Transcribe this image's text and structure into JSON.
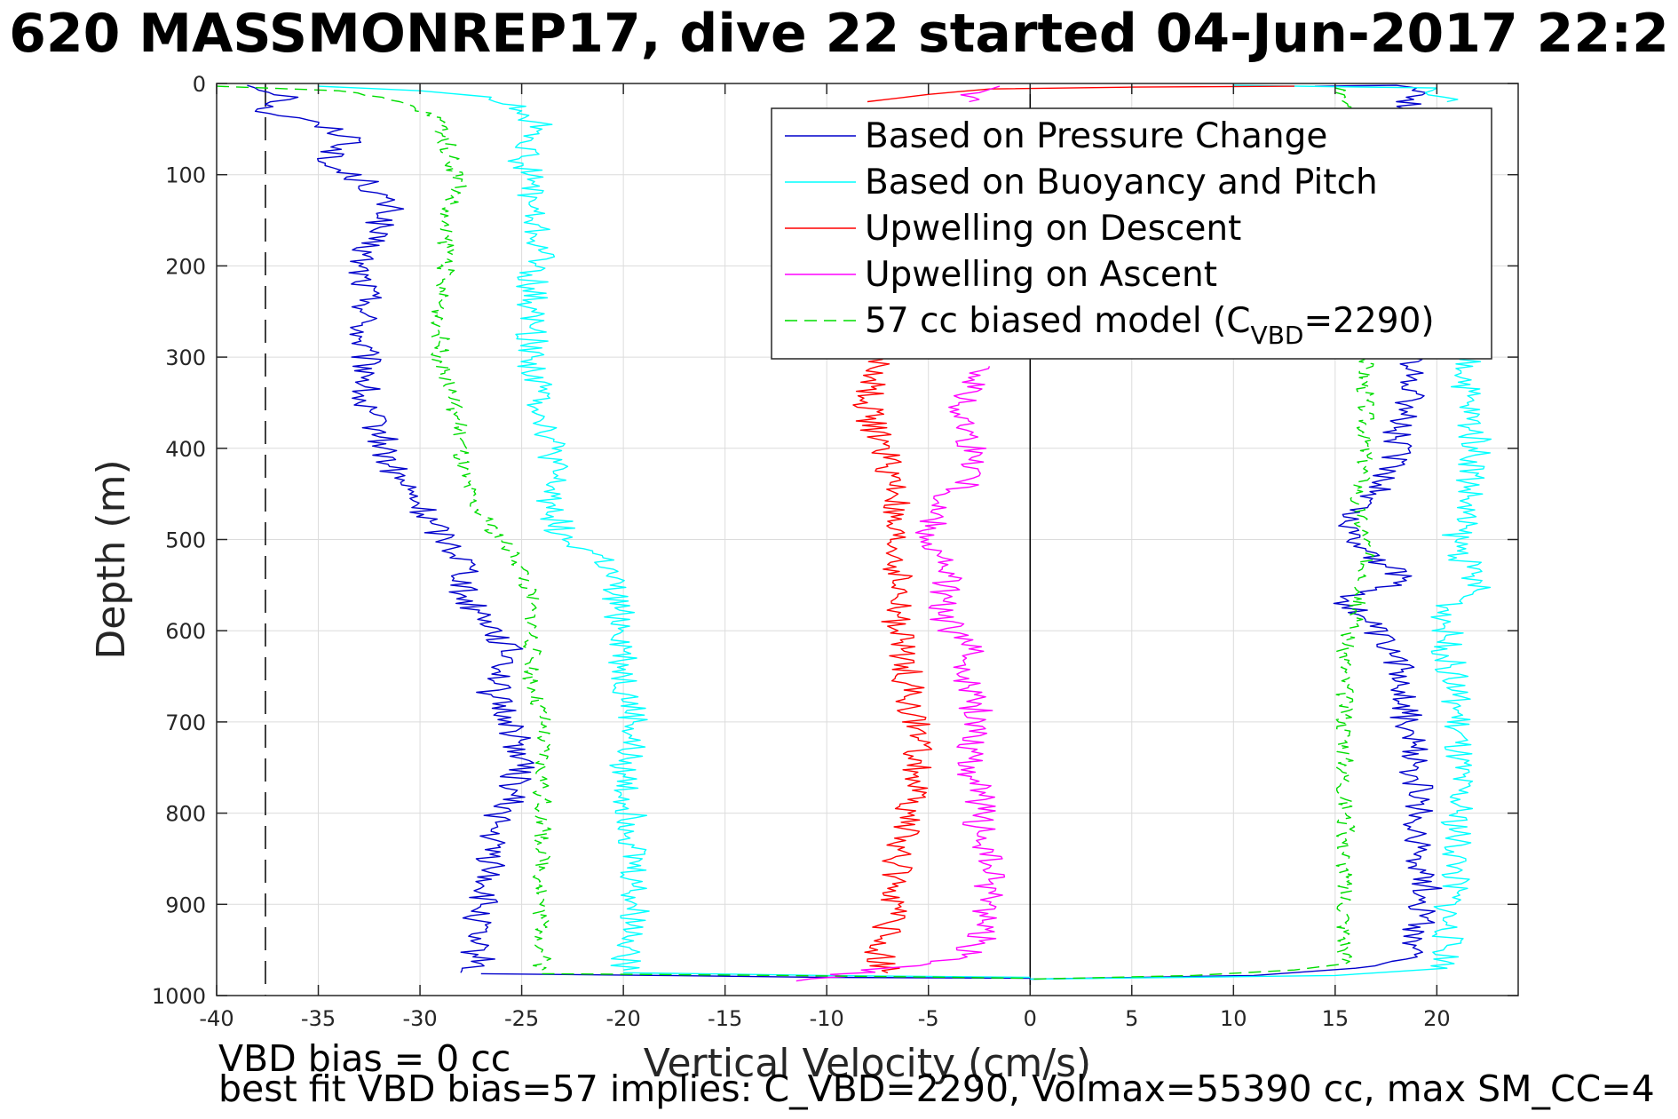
{
  "title": "620 MASSMONREP17, dive 22 started 04-Jun-2017 22:2",
  "notes": {
    "line1": "VBD bias = 0 cc",
    "line2": "best fit VBD bias=57 implies: C_VBD=2290, Volmax=55390 cc, max SM_CC=4"
  },
  "chart_data": {
    "type": "line",
    "xlabel": "Vertical Velocity (cm/s)",
    "ylabel": "Depth (m)",
    "xlim": [
      -40,
      24
    ],
    "ylim": [
      0,
      1000
    ],
    "y_reversed": true,
    "grid": true,
    "legend_position": "top-right",
    "x_ticks": [
      -40,
      -35,
      -30,
      -25,
      -20,
      -15,
      -10,
      -5,
      0,
      5,
      10,
      15,
      20
    ],
    "y_ticks": [
      0,
      100,
      200,
      300,
      400,
      500,
      600,
      700,
      800,
      900,
      1000
    ],
    "reference_lines": [
      {
        "axis": "x",
        "value": -37.6,
        "style": "dashed",
        "color": "#000000"
      },
      {
        "axis": "x",
        "value": 0,
        "style": "solid",
        "color": "#000000"
      }
    ],
    "series": [
      {
        "name": "Based on Pressure Change",
        "color": "#0000CC",
        "style": "solid",
        "segments": [
          [
            [
              -38.5,
              2
            ],
            [
              -36,
              15
            ],
            [
              -38,
              28
            ],
            [
              -35,
              45
            ],
            [
              -33,
              62
            ],
            [
              -35,
              85
            ],
            [
              -32.5,
              110
            ],
            [
              -31.5,
              140
            ],
            [
              -32.5,
              170
            ],
            [
              -33,
              200
            ],
            [
              -32.5,
              240
            ],
            [
              -33,
              280
            ],
            [
              -32.5,
              320
            ],
            [
              -33,
              350
            ],
            [
              -32,
              380
            ],
            [
              -31.5,
              420
            ],
            [
              -30.5,
              450
            ],
            [
              -29.5,
              480
            ],
            [
              -28.5,
              505
            ],
            [
              -27.5,
              530
            ],
            [
              -28,
              560
            ],
            [
              -26.5,
              590
            ],
            [
              -25.5,
              630
            ],
            [
              -26.5,
              670
            ],
            [
              -25.5,
              700
            ],
            [
              -25,
              740
            ],
            [
              -25.5,
              780
            ],
            [
              -26.5,
              820
            ],
            [
              -26.5,
              860
            ],
            [
              -27,
              900
            ],
            [
              -27.5,
              940
            ],
            [
              -27,
              965
            ],
            [
              -28,
              975
            ]
          ],
          [
            [
              -27,
              976
            ],
            [
              -18,
              978
            ],
            [
              -10,
              980
            ],
            [
              0,
              981
            ]
          ],
          [
            [
              14,
              3
            ],
            [
              18,
              2
            ],
            [
              19,
              5
            ],
            [
              18.5,
              15
            ],
            [
              19,
              30
            ]
          ],
          [
            [
              18.5,
              300
            ],
            [
              19,
              340
            ],
            [
              18,
              380
            ],
            [
              18,
              420
            ],
            [
              17,
              450
            ],
            [
              15.5,
              480
            ],
            [
              16.5,
              510
            ],
            [
              17.5,
              530
            ],
            [
              18.5,
              545
            ],
            [
              15.5,
              565
            ],
            [
              16.5,
              590
            ],
            [
              17.5,
              620
            ],
            [
              18.5,
              650
            ],
            [
              18.5,
              700
            ],
            [
              19,
              760
            ],
            [
              19,
              820
            ],
            [
              19.5,
              880
            ],
            [
              19,
              940
            ],
            [
              18.5,
              960
            ],
            [
              16,
              970
            ],
            [
              11,
              978
            ],
            [
              0,
              982
            ]
          ]
        ]
      },
      {
        "name": "Based on Buoyancy and Pitch",
        "color": "#00FFFF",
        "style": "solid",
        "segments": [
          [
            [
              -35,
              3
            ],
            [
              -30,
              8
            ],
            [
              -26.5,
              15
            ],
            [
              -25,
              30
            ],
            [
              -24,
              50
            ],
            [
              -25,
              80
            ],
            [
              -24.5,
              110
            ],
            [
              -24.5,
              150
            ],
            [
              -24,
              185
            ],
            [
              -24.5,
              210
            ],
            [
              -24.5,
              250
            ],
            [
              -24.5,
              300
            ],
            [
              -24,
              350
            ],
            [
              -23.5,
              400
            ],
            [
              -23.5,
              460
            ],
            [
              -23,
              500
            ],
            [
              -21,
              520
            ],
            [
              -20.5,
              560
            ],
            [
              -20,
              600
            ],
            [
              -20,
              650
            ],
            [
              -19.5,
              700
            ],
            [
              -20,
              760
            ],
            [
              -19.5,
              820
            ],
            [
              -19.5,
              880
            ],
            [
              -19.5,
              940
            ],
            [
              -20,
              972
            ]
          ],
          [
            [
              -20,
              975
            ],
            [
              -10,
              978
            ],
            [
              0,
              980
            ]
          ],
          [
            [
              10,
              2
            ],
            [
              20,
              5
            ],
            [
              20.5,
              20
            ]
          ],
          [
            [
              22,
              240
            ],
            [
              21.5,
              300
            ],
            [
              21.5,
              350
            ],
            [
              22,
              400
            ],
            [
              21.5,
              460
            ],
            [
              21,
              500
            ],
            [
              21.5,
              530
            ],
            [
              22,
              555
            ],
            [
              20.5,
              575
            ],
            [
              20.5,
              620
            ],
            [
              21,
              680
            ],
            [
              21,
              740
            ],
            [
              21,
              800
            ],
            [
              21,
              860
            ],
            [
              20.5,
              920
            ],
            [
              20.5,
              970
            ],
            [
              15,
              978
            ],
            [
              0,
              982
            ]
          ]
        ]
      },
      {
        "name": "Upwelling on Descent",
        "color": "#FF0000",
        "style": "solid",
        "segments": [
          [
            [
              13,
              3
            ],
            [
              5,
              4
            ],
            [
              -2,
              6
            ],
            [
              -5,
              12
            ],
            [
              -8,
              20
            ]
          ],
          [
            [
              -7.5,
              300
            ],
            [
              -8,
              350
            ],
            [
              -7.5,
              390
            ],
            [
              -7,
              420
            ],
            [
              -6.5,
              450
            ],
            [
              -7,
              480
            ],
            [
              -6.5,
              520
            ],
            [
              -6.5,
              560
            ],
            [
              -6.5,
              600
            ],
            [
              -6,
              640
            ],
            [
              -6,
              680
            ],
            [
              -5.5,
              720
            ],
            [
              -5.5,
              760
            ],
            [
              -6,
              800
            ],
            [
              -6.5,
              840
            ],
            [
              -6.5,
              880
            ],
            [
              -7,
              920
            ],
            [
              -7.5,
              950
            ],
            [
              -7,
              975
            ]
          ]
        ]
      },
      {
        "name": "Upwelling on Ascent",
        "color": "#FF00FF",
        "style": "solid",
        "segments": [
          [
            [
              -1.5,
              3
            ],
            [
              -2.5,
              10
            ],
            [
              -3,
              20
            ]
          ],
          [
            [
              -2,
              310
            ],
            [
              -3.5,
              350
            ],
            [
              -3,
              390
            ],
            [
              -2.5,
              430
            ],
            [
              -4.5,
              460
            ],
            [
              -5,
              500
            ],
            [
              -4,
              540
            ],
            [
              -4.5,
              580
            ],
            [
              -3,
              620
            ],
            [
              -3,
              660
            ],
            [
              -2.5,
              700
            ],
            [
              -3,
              740
            ],
            [
              -2.5,
              780
            ],
            [
              -2.5,
              820
            ],
            [
              -2,
              860
            ],
            [
              -2,
              900
            ],
            [
              -2.5,
              940
            ],
            [
              -3.5,
              960
            ],
            [
              -11.5,
              984
            ]
          ]
        ]
      },
      {
        "name": "57 cc biased model (C_VBD=2290)",
        "legend_label_parts": [
          "57 cc biased model (C",
          "VBD",
          "=2290)"
        ],
        "color": "#00DD00",
        "style": "dashed",
        "segments": [
          [
            [
              -40,
              3
            ],
            [
              -34,
              8
            ],
            [
              -31,
              20
            ],
            [
              -29,
              40
            ],
            [
              -28.5,
              80
            ],
            [
              -28,
              110
            ],
            [
              -29,
              150
            ],
            [
              -28.5,
              190
            ],
            [
              -29,
              220
            ],
            [
              -29,
              260
            ],
            [
              -29,
              300
            ],
            [
              -28.5,
              340
            ],
            [
              -28,
              380
            ],
            [
              -28,
              420
            ],
            [
              -27.5,
              460
            ],
            [
              -26,
              500
            ],
            [
              -25,
              530
            ],
            [
              -24.5,
              570
            ],
            [
              -24.5,
              620
            ],
            [
              -24.5,
              660
            ],
            [
              -24,
              700
            ],
            [
              -24,
              760
            ],
            [
              -24,
              820
            ],
            [
              -24,
              880
            ],
            [
              -24,
              930
            ],
            [
              -24,
              972
            ]
          ],
          [
            [
              -24,
              976
            ],
            [
              -12,
              978
            ],
            [
              0,
              981
            ]
          ],
          [
            [
              15,
              5
            ],
            [
              15.5,
              15
            ],
            [
              16,
              30
            ]
          ],
          [
            [
              16.5,
              300
            ],
            [
              16.5,
              360
            ],
            [
              16.5,
              420
            ],
            [
              16,
              460
            ],
            [
              16.5,
              500
            ],
            [
              16.5,
              540
            ],
            [
              16,
              580
            ],
            [
              15.5,
              620
            ],
            [
              15.5,
              680
            ],
            [
              15.5,
              740
            ],
            [
              15.5,
              800
            ],
            [
              15.5,
              860
            ],
            [
              15.5,
              920
            ],
            [
              15.5,
              965
            ],
            [
              13,
              972
            ],
            [
              8,
              978
            ],
            [
              0,
              982
            ]
          ]
        ]
      }
    ]
  }
}
